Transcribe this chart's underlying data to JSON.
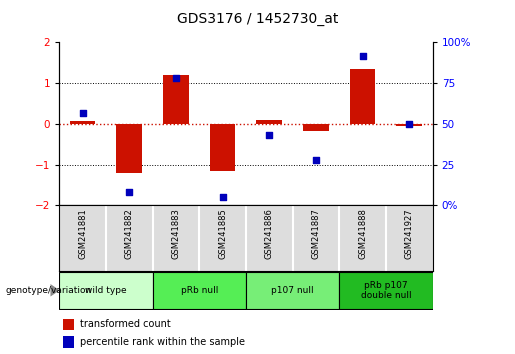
{
  "title": "GDS3176 / 1452730_at",
  "samples": [
    "GSM241881",
    "GSM241882",
    "GSM241883",
    "GSM241885",
    "GSM241886",
    "GSM241887",
    "GSM241888",
    "GSM241927"
  ],
  "bar_values": [
    0.07,
    -1.2,
    1.2,
    -1.15,
    0.1,
    -0.18,
    1.35,
    -0.04
  ],
  "percentile_pct": [
    57,
    8,
    78,
    5,
    43,
    28,
    92,
    50
  ],
  "bar_color": "#cc1100",
  "dot_color": "#0000bb",
  "zero_line_color": "#cc1100",
  "groups": [
    {
      "label": "wild type",
      "start": 0,
      "end": 2,
      "color": "#ccffcc"
    },
    {
      "label": "pRb null",
      "start": 2,
      "end": 4,
      "color": "#55ee55"
    },
    {
      "label": "p107 null",
      "start": 4,
      "end": 6,
      "color": "#77ee77"
    },
    {
      "label": "pRb p107\ndouble null",
      "start": 6,
      "end": 8,
      "color": "#22bb22"
    }
  ],
  "ylim_left": [
    -2,
    2
  ],
  "yticks_left": [
    -2,
    -1,
    0,
    1,
    2
  ],
  "yticks_right": [
    0,
    25,
    50,
    75,
    100
  ],
  "ytick_labels_right": [
    "0%",
    "25",
    "50",
    "75",
    "100%"
  ],
  "legend_bar": "transformed count",
  "legend_dot": "percentile rank within the sample",
  "sample_bg": "#dddddd",
  "plot_bg": "#ffffff",
  "border_color": "#000000"
}
